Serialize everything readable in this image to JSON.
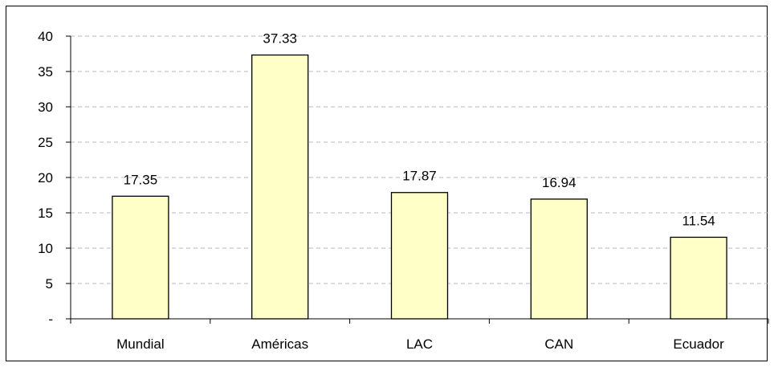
{
  "chart_data": {
    "type": "bar",
    "categories": [
      "Mundial",
      "Américas",
      "LAC",
      "CAN",
      "Ecuador"
    ],
    "values": [
      17.35,
      37.33,
      17.87,
      16.94,
      11.54
    ],
    "data_labels": [
      "17.35",
      "37.33",
      "17.87",
      "16.94",
      "11.54"
    ],
    "title": "",
    "xlabel": "",
    "ylabel": "",
    "ylim": [
      0,
      40
    ],
    "yticks": [
      0,
      5,
      10,
      15,
      20,
      25,
      30,
      35,
      40
    ],
    "ytick_labels": [
      "-",
      "5",
      "10",
      "15",
      "20",
      "25",
      "30",
      "35",
      "40"
    ],
    "grid": true,
    "grid_style": "dashed",
    "legend": "none",
    "bar_color": "#FFFFC8",
    "bar_edge_color": "#000000"
  }
}
